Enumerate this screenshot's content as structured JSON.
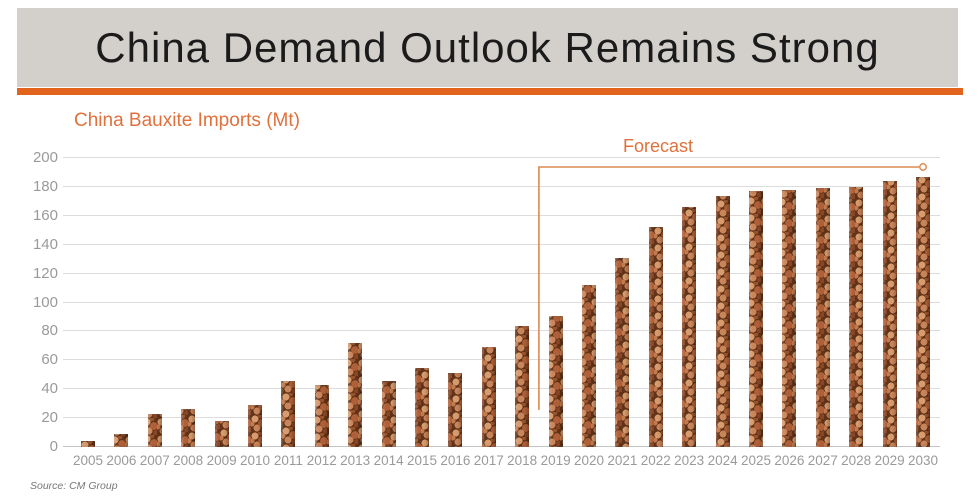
{
  "header": {
    "title": "China Demand Outlook Remains Strong"
  },
  "chart_data": {
    "type": "bar",
    "title": "China Bauxite Imports (Mt)",
    "xlabel": "",
    "ylabel": "China Bauxite Imports (Mt)",
    "ylim": [
      0,
      200
    ],
    "ytick_step": 20,
    "grid": true,
    "legend": "none",
    "categories": [
      "2005",
      "2006",
      "2007",
      "2008",
      "2009",
      "2010",
      "2011",
      "2012",
      "2013",
      "2014",
      "2015",
      "2016",
      "2017",
      "2018",
      "2019",
      "2020",
      "2021",
      "2022",
      "2023",
      "2024",
      "2025",
      "2026",
      "2027",
      "2028",
      "2029",
      "2030"
    ],
    "values": [
      4,
      9,
      23,
      26,
      18,
      29,
      46,
      43,
      72,
      46,
      55,
      51,
      69,
      84,
      91,
      112,
      131,
      152,
      166,
      174,
      177,
      178,
      179,
      180,
      184,
      187
    ],
    "forecast": {
      "label": "Forecast",
      "start_year": "2019",
      "end_year": "2030"
    }
  },
  "source": {
    "text": "Source: CM Group"
  },
  "colors": {
    "accent_orange": "#e2641c",
    "label_orange": "#e0713c",
    "bracket_orange": "#dc8a50",
    "header_bg": "#d3d0cc",
    "title_text": "#1b1b1b",
    "axis_text": "#9a9a9a",
    "gridline": "#dcdcdc",
    "bauxite_dark": "#613318",
    "bauxite_mid": "#b06038",
    "bauxite_light": "#d79b6d"
  }
}
